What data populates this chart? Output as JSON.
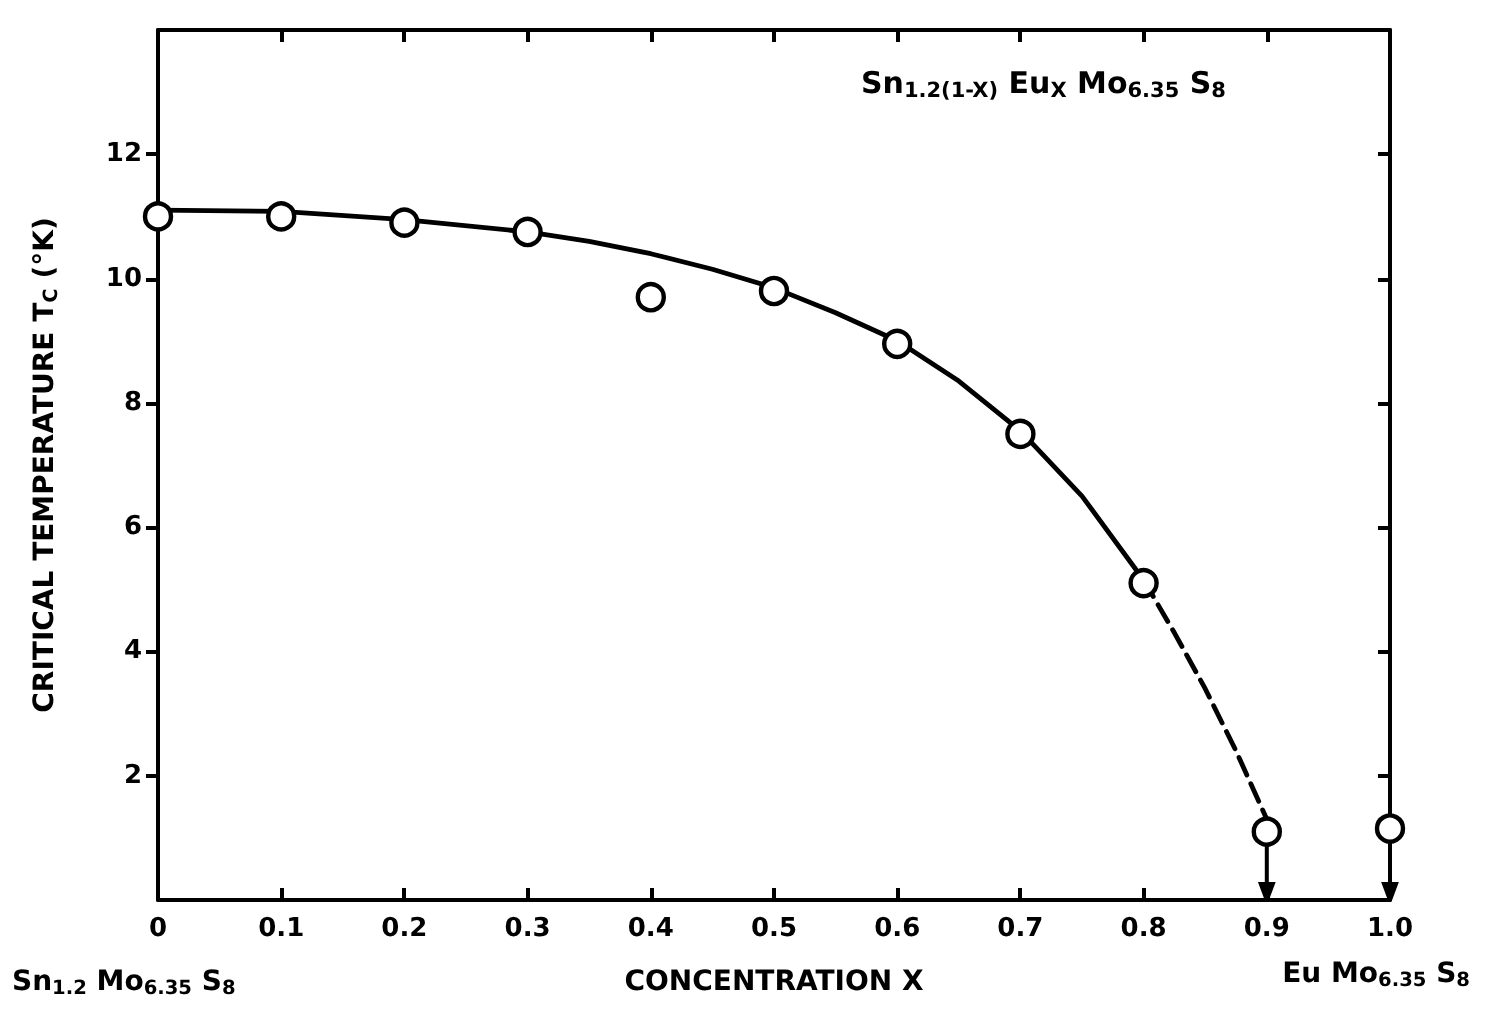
{
  "chart_data": {
    "type": "scatter",
    "xlabel": "CONCENTRATION X",
    "ylabel": "CRITICAL TEMPERATURE T$_{C}$ (°K)",
    "annotations": [
      "Sn$_{1.2(1-X)}$ Eu$_{X}$ Mo$_{6.35}$ S$_{8}$",
      "Sn$_{1.2}$ Mo$_{6.35}$ S$_{8}$",
      "Eu Mo$_{6.35}$ S$_{8}$"
    ],
    "xlim": [
      0,
      1
    ],
    "xticks": [
      0,
      0.1,
      0.2,
      0.3,
      0.4,
      0.5,
      0.6,
      0.7,
      0.8,
      0.9,
      {
        "value": 1,
        "label": "1.0"
      }
    ],
    "ylim": [
      0,
      14
    ],
    "yticks": [
      2,
      4,
      6,
      8,
      10,
      12
    ],
    "grid": false,
    "series": [
      {
        "color": "#000000",
        "marker": "circle",
        "x": [
          0,
          0.1,
          0.2,
          0.3,
          0.4,
          0.5,
          0.6,
          0.7,
          0.8,
          0.9,
          1.0
        ],
        "values": [
          11.0,
          11.0,
          10.9,
          10.75,
          9.7,
          9.8,
          8.95,
          7.5,
          5.1,
          1.1,
          1.15
        ],
        "errors": [
          null,
          null,
          null,
          null,
          null,
          null,
          null,
          null,
          null,
          [
            0,
            1.1
          ],
          [
            0,
            1.15
          ]
        ]
      },
      {
        "type": "line",
        "color": "#000000",
        "marker": "none",
        "line_style": "solid",
        "x": [
          0,
          0.1,
          0.2,
          0.3,
          0.35,
          0.4,
          0.45,
          0.5,
          0.55,
          0.6,
          0.65,
          0.7,
          0.75,
          0.8
        ],
        "values": [
          11.1,
          11.08,
          10.95,
          10.75,
          10.6,
          10.4,
          10.15,
          9.85,
          9.45,
          9.0,
          8.35,
          7.55,
          6.5,
          5.15
        ]
      },
      {
        "type": "line",
        "color": "#000000",
        "marker": "none",
        "line_style": "dashed",
        "x": [
          0.8,
          0.825,
          0.85,
          0.875,
          0.9
        ],
        "values": [
          5.15,
          4.3,
          3.4,
          2.4,
          1.3
        ]
      }
    ]
  }
}
